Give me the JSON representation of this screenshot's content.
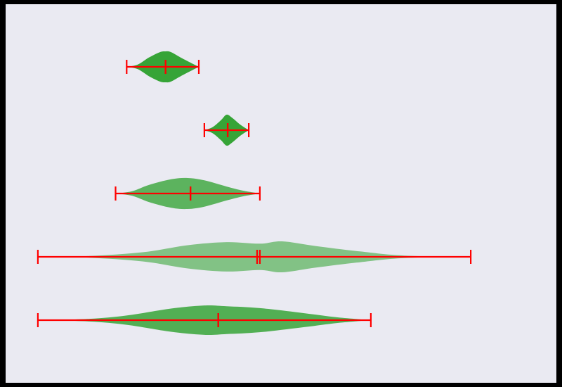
{
  "colors": {
    "figure_background": "#000000",
    "plot_background": "#eaeaf2",
    "violin_fill": "#2ca02c",
    "marker_color": "#ff0000"
  },
  "chart_data": {
    "type": "violin",
    "orientation": "horizontal",
    "title": "",
    "xlabel": "",
    "ylabel": "",
    "grid": false,
    "xlim": [
      0,
      100
    ],
    "violins": [
      {
        "min": 22,
        "max": 35,
        "median": 29,
        "mean": 29,
        "opacity": 0.95,
        "shape": [
          [
            22,
            0.0
          ],
          [
            24,
            0.15
          ],
          [
            26,
            0.6
          ],
          [
            28,
            0.95
          ],
          [
            29,
            1.0
          ],
          [
            30,
            0.95
          ],
          [
            32,
            0.55
          ],
          [
            34,
            0.18
          ],
          [
            35,
            0.0
          ]
        ]
      },
      {
        "min": 36,
        "max": 44,
        "median": 40.2,
        "mean": 40.2,
        "opacity": 0.95,
        "shape": [
          [
            36,
            0.0
          ],
          [
            37.5,
            0.2
          ],
          [
            39,
            0.65
          ],
          [
            40,
            1.0
          ],
          [
            41,
            0.8
          ],
          [
            42.5,
            0.35
          ],
          [
            44,
            0.0
          ]
        ]
      },
      {
        "min": 20,
        "max": 46,
        "median": 33.5,
        "mean": 33.5,
        "opacity": 0.75,
        "shape": [
          [
            20,
            0.0
          ],
          [
            23,
            0.15
          ],
          [
            26,
            0.55
          ],
          [
            30,
            0.92
          ],
          [
            33,
            1.0
          ],
          [
            36,
            0.85
          ],
          [
            40,
            0.45
          ],
          [
            43,
            0.18
          ],
          [
            46,
            0.0
          ]
        ]
      },
      {
        "min": 6,
        "max": 84,
        "median": 45.5,
        "mean": 46,
        "opacity": 0.55,
        "shape": [
          [
            6,
            0.0
          ],
          [
            15,
            0.05
          ],
          [
            25,
            0.3
          ],
          [
            33,
            0.75
          ],
          [
            40,
            0.95
          ],
          [
            46,
            0.85
          ],
          [
            50,
            1.0
          ],
          [
            56,
            0.7
          ],
          [
            64,
            0.35
          ],
          [
            72,
            0.08
          ],
          [
            84,
            0.0
          ]
        ]
      },
      {
        "min": 6,
        "max": 66,
        "median": 38.5,
        "mean": 38.5,
        "opacity": 0.8,
        "shape": [
          [
            6,
            0.0
          ],
          [
            15,
            0.08
          ],
          [
            22,
            0.3
          ],
          [
            30,
            0.75
          ],
          [
            36,
            0.95
          ],
          [
            40,
            0.9
          ],
          [
            46,
            0.78
          ],
          [
            54,
            0.45
          ],
          [
            60,
            0.18
          ],
          [
            66,
            0.0
          ]
        ]
      }
    ]
  }
}
